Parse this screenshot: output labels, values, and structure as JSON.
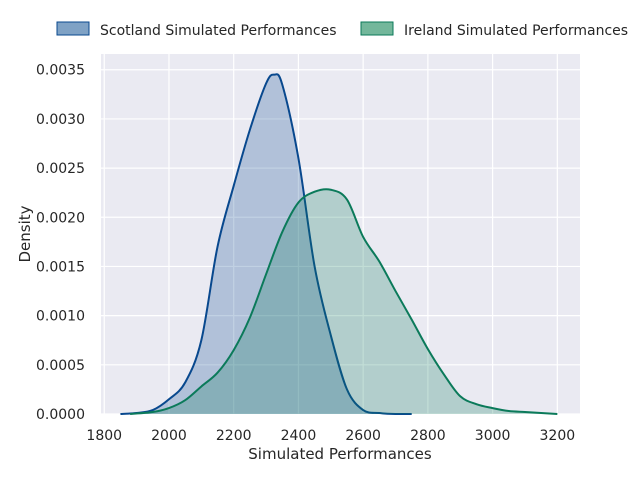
{
  "chart_data": {
    "type": "area",
    "title": "",
    "xlabel": "Simulated Performances",
    "ylabel": "Density",
    "xlim": [
      1790,
      3270
    ],
    "ylim": [
      0,
      0.00366
    ],
    "xticks": [
      1800,
      2000,
      2200,
      2400,
      2600,
      2800,
      3000,
      3200
    ],
    "xtick_labels": [
      "1800",
      "2000",
      "2200",
      "2400",
      "2600",
      "2800",
      "3000",
      "3200"
    ],
    "yticks": [
      0,
      0.0005,
      0.001,
      0.0015,
      0.002,
      0.0025,
      0.003,
      0.0035
    ],
    "ytick_labels": [
      "0.0000",
      "0.0005",
      "0.0010",
      "0.0015",
      "0.0020",
      "0.0025",
      "0.0030",
      "0.0035"
    ],
    "grid": true,
    "legend_position": "top",
    "series": [
      {
        "name": "Scotland Simulated Performances",
        "color": "#08488e",
        "fill": "#7fa2c5",
        "x": [
          1850,
          1900,
          1950,
          2000,
          2050,
          2100,
          2150,
          2200,
          2250,
          2300,
          2325,
          2350,
          2400,
          2450,
          2500,
          2550,
          2600,
          2650,
          2700,
          2750
        ],
        "y": [
          0.0,
          1e-05,
          4e-05,
          0.00015,
          0.00032,
          0.00075,
          0.0017,
          0.00232,
          0.00289,
          0.00336,
          0.00345,
          0.00335,
          0.0026,
          0.0015,
          0.0008,
          0.00025,
          4e-05,
          1e-05,
          0.0,
          0.0
        ]
      },
      {
        "name": "Ireland Simulated Performances",
        "color": "#0b7a5a",
        "fill": "#73b79b",
        "x": [
          1880,
          1950,
          2000,
          2050,
          2100,
          2150,
          2200,
          2250,
          2300,
          2350,
          2400,
          2450,
          2500,
          2550,
          2600,
          2650,
          2700,
          2750,
          2800,
          2850,
          2900,
          2950,
          3000,
          3050,
          3100,
          3150,
          3200
        ],
        "y": [
          0.0,
          2e-05,
          6e-05,
          0.00014,
          0.00028,
          0.00042,
          0.00065,
          0.00098,
          0.00142,
          0.00185,
          0.00215,
          0.00226,
          0.00228,
          0.00218,
          0.0018,
          0.00155,
          0.00125,
          0.00096,
          0.00066,
          0.0004,
          0.00018,
          0.0001,
          6e-05,
          3e-05,
          2e-05,
          1e-05,
          0.0
        ]
      }
    ]
  }
}
